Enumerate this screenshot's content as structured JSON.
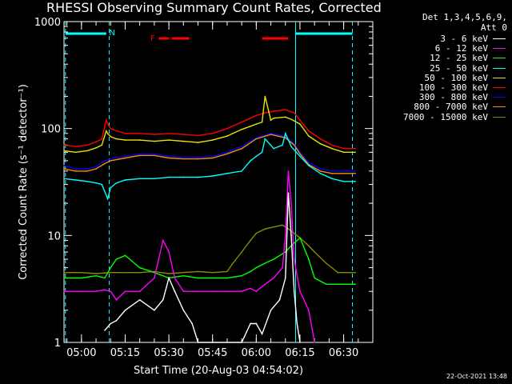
{
  "chart_data": {
    "type": "line",
    "title": "RHESSI Observing Summary Count Rates, Corrected",
    "xlabel": "Start Time (20-Aug-03 04:54:02)",
    "ylabel": "Corrected Count Rate (s⁻¹ detector⁻¹)",
    "ylog": true,
    "ylim": [
      1,
      1000
    ],
    "xlim_minutes": [
      -6,
      100
    ],
    "x_tick_labels": [
      "05:00",
      "05:15",
      "05:30",
      "05:45",
      "06:00",
      "06:15",
      "06:30"
    ],
    "x_tick_minutes": [
      0,
      15,
      30,
      45,
      60,
      75,
      90
    ],
    "y_tick_labels": [
      "1",
      "10",
      "100",
      "1000"
    ],
    "y_ticks": [
      1,
      10,
      100,
      1000
    ],
    "detector_text": "Det 1,3,4,5,6,9,",
    "attenuator_text": "Att 0",
    "legend": [
      {
        "label": "3 - 6 keV",
        "color": "#ffffff"
      },
      {
        "label": "6 - 12 keV",
        "color": "#ff00ff"
      },
      {
        "label": "12 - 25 keV",
        "color": "#00ff00"
      },
      {
        "label": "25 - 50 keV",
        "color": "#00ffff"
      },
      {
        "label": "50 - 100 keV",
        "color": "#e6e600"
      },
      {
        "label": "100 - 300 keV",
        "color": "#ff0000"
      },
      {
        "label": "300 - 800 keV",
        "color": "#0000ff"
      },
      {
        "label": "800 - 7000 keV",
        "color": "#ff8c00"
      },
      {
        "label": "7000 - 15000 keV",
        "color": "#8b8b00"
      }
    ],
    "series": [
      {
        "name": "100 - 300 keV",
        "color": "#ff0000",
        "x": [
          -6,
          -2,
          2,
          5,
          7,
          8.5,
          9,
          10,
          12,
          15,
          20,
          25,
          30,
          35,
          40,
          45,
          50,
          55,
          58,
          60,
          63,
          66,
          70,
          73,
          75,
          78,
          82,
          86,
          90,
          94
        ],
        "y": [
          70,
          68,
          70,
          75,
          80,
          120,
          110,
          100,
          95,
          90,
          90,
          88,
          90,
          88,
          86,
          90,
          100,
          115,
          125,
          132,
          140,
          145,
          150,
          140,
          120,
          95,
          80,
          70,
          65,
          65
        ]
      },
      {
        "name": "50 - 100 keV",
        "color": "#e6e600",
        "x": [
          -6,
          -2,
          2,
          5,
          7,
          8.5,
          9,
          10,
          12,
          15,
          20,
          25,
          30,
          35,
          40,
          45,
          50,
          55,
          58,
          60,
          62,
          63,
          65,
          66,
          70,
          72,
          75,
          78,
          82,
          86,
          90,
          94
        ],
        "y": [
          62,
          60,
          62,
          66,
          70,
          95,
          90,
          84,
          80,
          78,
          78,
          76,
          78,
          76,
          74,
          78,
          85,
          98,
          105,
          110,
          115,
          200,
          120,
          125,
          128,
          122,
          110,
          85,
          72,
          65,
          60,
          60
        ]
      },
      {
        "name": "300 - 800 keV",
        "color": "#0000ff",
        "x": [
          -6,
          -2,
          2,
          5,
          8,
          10,
          15,
          20,
          25,
          30,
          35,
          40,
          45,
          50,
          55,
          60,
          65,
          70,
          73,
          75,
          78,
          82,
          86,
          90,
          94
        ],
        "y": [
          45,
          42,
          42,
          44,
          50,
          52,
          55,
          58,
          58,
          55,
          54,
          54,
          55,
          60,
          68,
          82,
          90,
          85,
          72,
          60,
          48,
          42,
          40,
          40,
          40
        ]
      },
      {
        "name": "800 - 7000 keV",
        "color": "#ff8c00",
        "x": [
          -6,
          -2,
          2,
          5,
          8,
          10,
          15,
          20,
          25,
          30,
          35,
          40,
          45,
          50,
          55,
          60,
          65,
          70,
          73,
          75,
          78,
          82,
          86,
          90,
          94
        ],
        "y": [
          42,
          40,
          40,
          42,
          47,
          50,
          53,
          56,
          56,
          53,
          52,
          52,
          53,
          58,
          65,
          80,
          88,
          82,
          70,
          58,
          46,
          40,
          38,
          38,
          38
        ]
      },
      {
        "name": "25 - 50 keV",
        "color": "#00ffff",
        "x": [
          -6,
          -2,
          2,
          5,
          7,
          9,
          10,
          12,
          15,
          20,
          25,
          30,
          35,
          40,
          45,
          50,
          55,
          58,
          60,
          62,
          63,
          66,
          69,
          70,
          72,
          75,
          78,
          82,
          86,
          90,
          94
        ],
        "y": [
          34,
          33,
          32,
          31,
          30,
          22,
          28,
          31,
          33,
          34,
          34,
          35,
          35,
          35,
          36,
          38,
          40,
          50,
          55,
          60,
          80,
          65,
          70,
          90,
          68,
          55,
          45,
          38,
          34,
          32,
          32
        ]
      },
      {
        "name": "7000 - 15000 keV",
        "color": "#8b8b00",
        "x": [
          -6,
          0,
          5,
          10,
          15,
          20,
          25,
          30,
          35,
          40,
          45,
          50,
          52,
          55,
          58,
          60,
          63,
          66,
          69,
          70,
          72,
          75,
          78,
          80,
          84,
          88,
          92,
          94
        ],
        "y": [
          4.5,
          4.5,
          4.4,
          4.5,
          4.5,
          4.5,
          4.6,
          4.4,
          4.5,
          4.6,
          4.5,
          4.6,
          5.5,
          7,
          9,
          10.5,
          11.5,
          12,
          12.5,
          12,
          11,
          9.5,
          8,
          7,
          5.5,
          4.5,
          4.5,
          4.5
        ]
      },
      {
        "name": "12 - 25 keV",
        "color": "#00ff00",
        "x": [
          -6,
          0,
          5,
          8,
          10,
          12,
          15,
          20,
          25,
          30,
          35,
          40,
          45,
          50,
          55,
          58,
          60,
          63,
          66,
          70,
          72,
          75,
          78,
          80,
          84,
          88,
          92,
          94
        ],
        "y": [
          4,
          4,
          4.2,
          4,
          5,
          6,
          6.5,
          5,
          4.5,
          4,
          4.2,
          4,
          4,
          4,
          4.2,
          4.6,
          5,
          5.5,
          6,
          7,
          8,
          9.5,
          6,
          4,
          3.5,
          3.5,
          3.5,
          3.5
        ]
      },
      {
        "name": "6 - 12 keV",
        "color": "#ff00ff",
        "x": [
          -6,
          0,
          5,
          8,
          10,
          12,
          15,
          20,
          25,
          28,
          30,
          32,
          35,
          40,
          45,
          50,
          55,
          58,
          60,
          63,
          66,
          69,
          70,
          71,
          72,
          73,
          75,
          78,
          80
        ],
        "y": [
          3,
          3,
          3,
          3.1,
          3,
          2.5,
          3,
          3,
          4,
          9,
          7,
          4,
          3,
          3,
          3,
          3,
          3,
          3.2,
          3,
          3.5,
          4,
          5,
          10,
          40,
          20,
          6,
          3,
          2,
          1
        ]
      },
      {
        "name": "3 - 6 keV",
        "color": "#ffffff",
        "x": [
          8,
          10,
          12,
          15,
          20,
          25,
          28,
          30,
          32,
          35,
          38,
          40,
          45,
          55,
          58,
          60,
          62,
          65,
          68,
          70,
          71,
          72,
          73,
          74,
          75
        ],
        "y": [
          1.3,
          1.5,
          1.6,
          2,
          2.5,
          2,
          2.5,
          4,
          3,
          2,
          1.5,
          1,
          1,
          1,
          1.5,
          1.5,
          1.2,
          2,
          2.5,
          4,
          25,
          10,
          3,
          1.5,
          1
        ]
      }
    ],
    "markers": [
      {
        "label": "N",
        "color": "#00ffff"
      },
      {
        "label": "F",
        "color": "#ff0000"
      }
    ],
    "timestamp": "22-Oct-2021 13:48"
  }
}
